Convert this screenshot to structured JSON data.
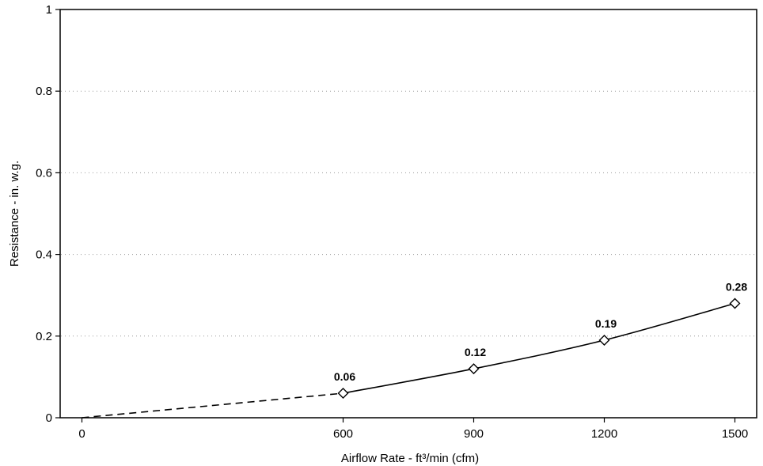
{
  "chart_data": {
    "type": "line",
    "title": "",
    "xlabel": "Airflow Rate - ft³/min (cfm)",
    "ylabel": "Resistance - in. w.g.",
    "xlim": [
      -50,
      1550
    ],
    "ylim": [
      0,
      1
    ],
    "x_ticks": [
      0,
      600,
      900,
      1200,
      1500
    ],
    "x_tick_labels": [
      "0",
      "600",
      "900",
      "1200",
      "1500"
    ],
    "y_ticks": [
      0,
      0.2,
      0.4,
      0.6,
      0.8,
      1
    ],
    "y_tick_labels": [
      "0",
      "0.2",
      "0.4",
      "0.6",
      "0.8",
      "1"
    ],
    "grid": "dotted horizontal",
    "legend": "none",
    "extrapolated_segment": {
      "style": "dashed",
      "x": [
        0,
        600
      ],
      "y": [
        0,
        0.06
      ]
    },
    "series": [
      {
        "marker": "diamond",
        "style": "solid",
        "x": [
          600,
          900,
          1200,
          1500
        ],
        "y": [
          0.06,
          0.12,
          0.19,
          0.28
        ],
        "labels": [
          "0.06",
          "0.12",
          "0.19",
          "0.28"
        ]
      }
    ],
    "colors": {
      "line": "#000000",
      "grid": "#9a9a9a",
      "background": "#ffffff"
    }
  }
}
